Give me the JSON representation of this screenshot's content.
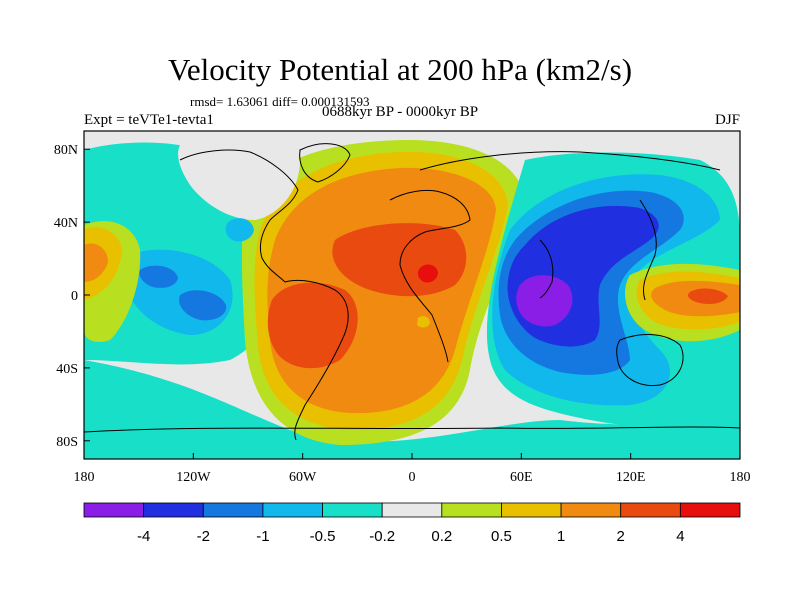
{
  "title": "Velocity Potential at 200 hPa (km2/s)",
  "stats": "rmsd= 1.63061 diff= 0.000131593",
  "experiment": "Expt = teVTe1-tevta1",
  "period": "0688kyr BP - 0000kyr BP",
  "season": "DJF",
  "x_ticks": [
    "180",
    "120W",
    "60W",
    "0",
    "60E",
    "120E",
    "180"
  ],
  "y_ticks": [
    "80N",
    "40N",
    "0",
    "40S",
    "80S"
  ],
  "colorbar": {
    "colors": [
      "#8a1ee6",
      "#2030e0",
      "#1478e0",
      "#10b8ec",
      "#18e0c8",
      "#e8e8e8",
      "#b8e020",
      "#e8c000",
      "#f08a10",
      "#e84a10",
      "#e80e0e"
    ],
    "labels": [
      "-4",
      "-2",
      "-1",
      "-0.5",
      "-0.2",
      "0.2",
      "0.5",
      "1",
      "2",
      "4"
    ]
  },
  "palette": {
    "lv_m4": "#8a1ee6",
    "lv_m2": "#2030e0",
    "lv_m1": "#1478e0",
    "lv_m05": "#10b8ec",
    "lv_m02": "#18e0c8",
    "lv_0": "#e8e8e8",
    "lv_02": "#b8e020",
    "lv_05": "#e8c000",
    "lv_1": "#f08a10",
    "lv_2": "#e84a10",
    "lv_4": "#e80e0e"
  }
}
